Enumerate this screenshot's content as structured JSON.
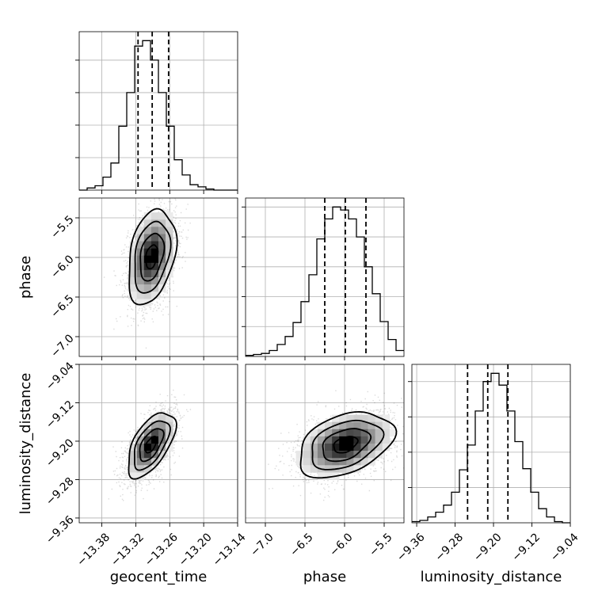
{
  "chart_data": {
    "type": "corner",
    "parameters": [
      "geocent_time",
      "phase",
      "luminosity_distance"
    ],
    "ranges": {
      "geocent_time": [
        -13.42,
        -13.14
      ],
      "phase": [
        -7.25,
        -5.25
      ],
      "luminosity_distance": [
        -9.37,
        -9.04
      ]
    },
    "ticks": {
      "geocent_time": {
        "values": [
          -13.38,
          -13.32,
          -13.26,
          -13.2,
          -13.14
        ],
        "labels": [
          "−13.38",
          "−13.32",
          "−13.26",
          "−13.20",
          "−13.14"
        ]
      },
      "phase": {
        "values": [
          -7.0,
          -6.5,
          -6.0,
          -5.5
        ],
        "labels": [
          "−7.0",
          "−6.5",
          "−6.0",
          "−5.5"
        ]
      },
      "luminosity_distance": {
        "values": [
          -9.36,
          -9.28,
          -9.2,
          -9.12,
          -9.04
        ],
        "labels": [
          "−9.36",
          "−9.28",
          "−9.20",
          "−9.12",
          "−9.04"
        ]
      }
    },
    "quantiles": {
      "geocent_time": [
        -13.316,
        -13.291,
        -13.262
      ],
      "phase": [
        -6.25,
        -5.99,
        -5.73
      ],
      "luminosity_distance": [
        -9.254,
        -9.212,
        -9.17
      ]
    },
    "histograms": {
      "geocent_time": {
        "edges": [
          -13.42,
          -13.406,
          -13.392,
          -13.378,
          -13.364,
          -13.35,
          -13.336,
          -13.322,
          -13.308,
          -13.294,
          -13.28,
          -13.266,
          -13.252,
          -13.238,
          -13.224,
          -13.21,
          -13.196,
          -13.182,
          -13.168,
          -13.154,
          -13.14
        ],
        "counts": [
          0,
          2,
          4,
          12,
          25,
          59,
          90,
          133,
          138,
          120,
          90,
          59,
          28,
          14,
          5,
          3,
          1,
          0,
          0,
          0
        ]
      },
      "phase": {
        "edges": [
          -7.25,
          -7.15,
          -7.05,
          -6.95,
          -6.85,
          -6.75,
          -6.65,
          -6.55,
          -6.45,
          -6.35,
          -6.25,
          -6.15,
          -6.05,
          -5.95,
          -5.85,
          -5.75,
          -5.65,
          -5.55,
          -5.45,
          -5.35,
          -5.25
        ],
        "counts": [
          1,
          2,
          3,
          6,
          12,
          20,
          34,
          55,
          82,
          118,
          138,
          150,
          147,
          138,
          120,
          90,
          63,
          35,
          17,
          6
        ]
      },
      "luminosity_distance": {
        "edges": [
          -9.37,
          -9.3535,
          -9.337,
          -9.3205,
          -9.304,
          -9.2875,
          -9.271,
          -9.2545,
          -9.238,
          -9.2215,
          -9.205,
          -9.1885,
          -9.172,
          -9.1555,
          -9.139,
          -9.1225,
          -9.106,
          -9.0895,
          -9.073,
          -9.0565,
          -9.04
        ],
        "counts": [
          1,
          2,
          5,
          9,
          15,
          26,
          45,
          66,
          95,
          120,
          127,
          117,
          95,
          69,
          46,
          26,
          12,
          5,
          1,
          0
        ]
      }
    },
    "density_2d": [
      {
        "x": "geocent_time",
        "y": "phase",
        "mean": [
          -13.292,
          -5.99
        ],
        "sd": [
          0.021,
          0.3
        ],
        "corr": 0.32
      },
      {
        "x": "geocent_time",
        "y": "luminosity_distance",
        "mean": [
          -13.293,
          -9.207
        ],
        "sd": [
          0.021,
          0.034
        ],
        "corr": 0.58
      },
      {
        "x": "phase",
        "y": "luminosity_distance",
        "mean": [
          -5.99,
          -9.207
        ],
        "sd": [
          0.3,
          0.034
        ],
        "corr": 0.38
      }
    ],
    "contour_levels_sigma": [
      0.5,
      1.0,
      1.5,
      2.0
    ],
    "grid": true
  }
}
